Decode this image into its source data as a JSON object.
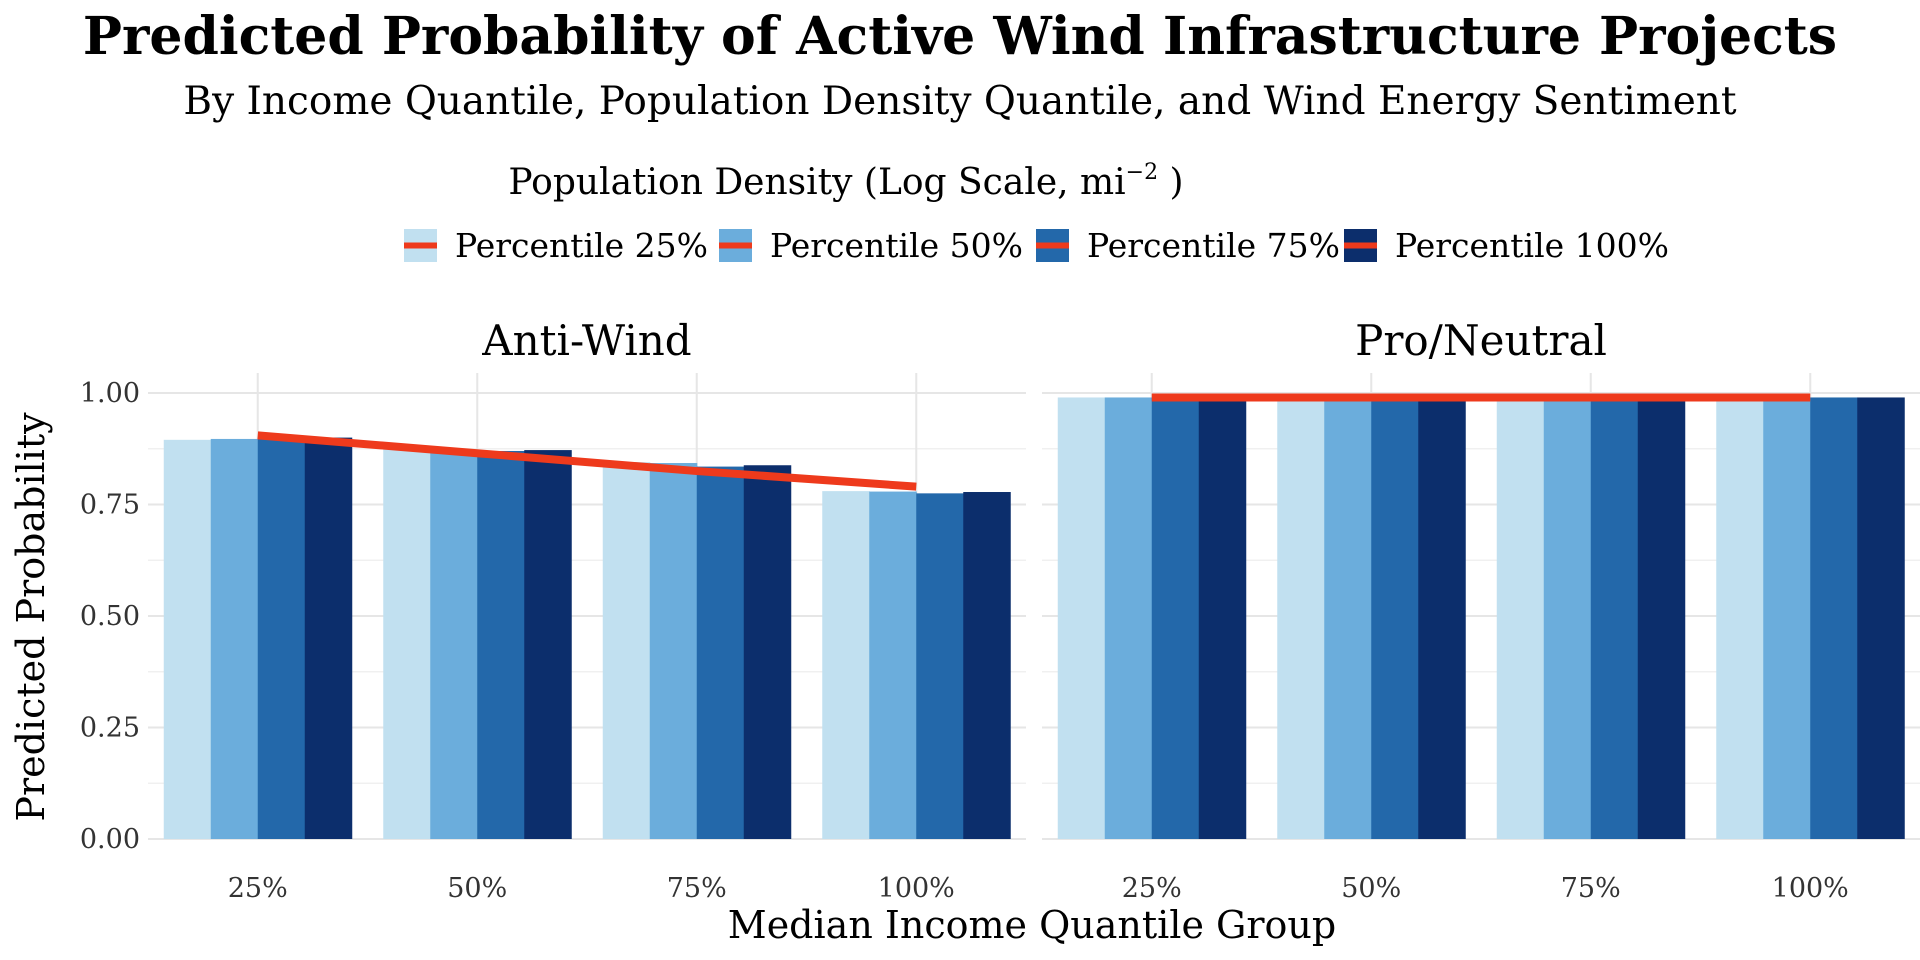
{
  "chart_data": {
    "type": "bar",
    "title": "Predicted Probability of Active Wind Infrastructure Projects",
    "subtitle": "By Income Quantile, Population Density Quantile, and Wind Energy Sentiment",
    "xlabel": "Median Income Quantile Group",
    "ylabel": "Predicted Probability",
    "ylim": [
      0,
      1
    ],
    "y_ticks": [
      "0.00",
      "0.25",
      "0.50",
      "0.75",
      "1.00"
    ],
    "y_tick_values": [
      0,
      0.25,
      0.5,
      0.75,
      1.0
    ],
    "categories": [
      "25%",
      "50%",
      "75%",
      "100%"
    ],
    "legend": {
      "title_main": "Population Density (Log Scale,  mi",
      "title_sup": "−2",
      "title_end": " )",
      "placement": "top",
      "entries": [
        "Percentile 25%",
        "Percentile 50%",
        "Percentile 75%",
        "Percentile 100%"
      ]
    },
    "series_colors": [
      "#c1e0f0",
      "#6baddc",
      "#2368aa",
      "#0c2e6c"
    ],
    "trend_color": "#ee3a1c",
    "grid": true,
    "facets": [
      {
        "name": "Anti-Wind",
        "series": [
          {
            "name": "Percentile 25%",
            "values": [
              0.895,
              0.875,
              0.845,
              0.78
            ]
          },
          {
            "name": "Percentile 50%",
            "values": [
              0.897,
              0.873,
              0.843,
              0.779
            ]
          },
          {
            "name": "Percentile 75%",
            "values": [
              0.9,
              0.87,
              0.835,
              0.775
            ]
          },
          {
            "name": "Percentile 100%",
            "values": [
              0.9,
              0.872,
              0.838,
              0.778
            ]
          }
        ],
        "trend": [
          0.905,
          0.865,
          0.825,
          0.79
        ]
      },
      {
        "name": "Pro/Neutral",
        "series": [
          {
            "name": "Percentile 25%",
            "values": [
              0.99,
              0.99,
              0.99,
              0.99
            ]
          },
          {
            "name": "Percentile 50%",
            "values": [
              0.99,
              0.99,
              0.99,
              0.99
            ]
          },
          {
            "name": "Percentile 75%",
            "values": [
              0.99,
              0.99,
              0.99,
              0.99
            ]
          },
          {
            "name": "Percentile 100%",
            "values": [
              0.99,
              0.99,
              0.99,
              0.99
            ]
          }
        ],
        "trend": [
          0.99,
          0.99,
          0.99,
          0.99
        ]
      }
    ]
  }
}
